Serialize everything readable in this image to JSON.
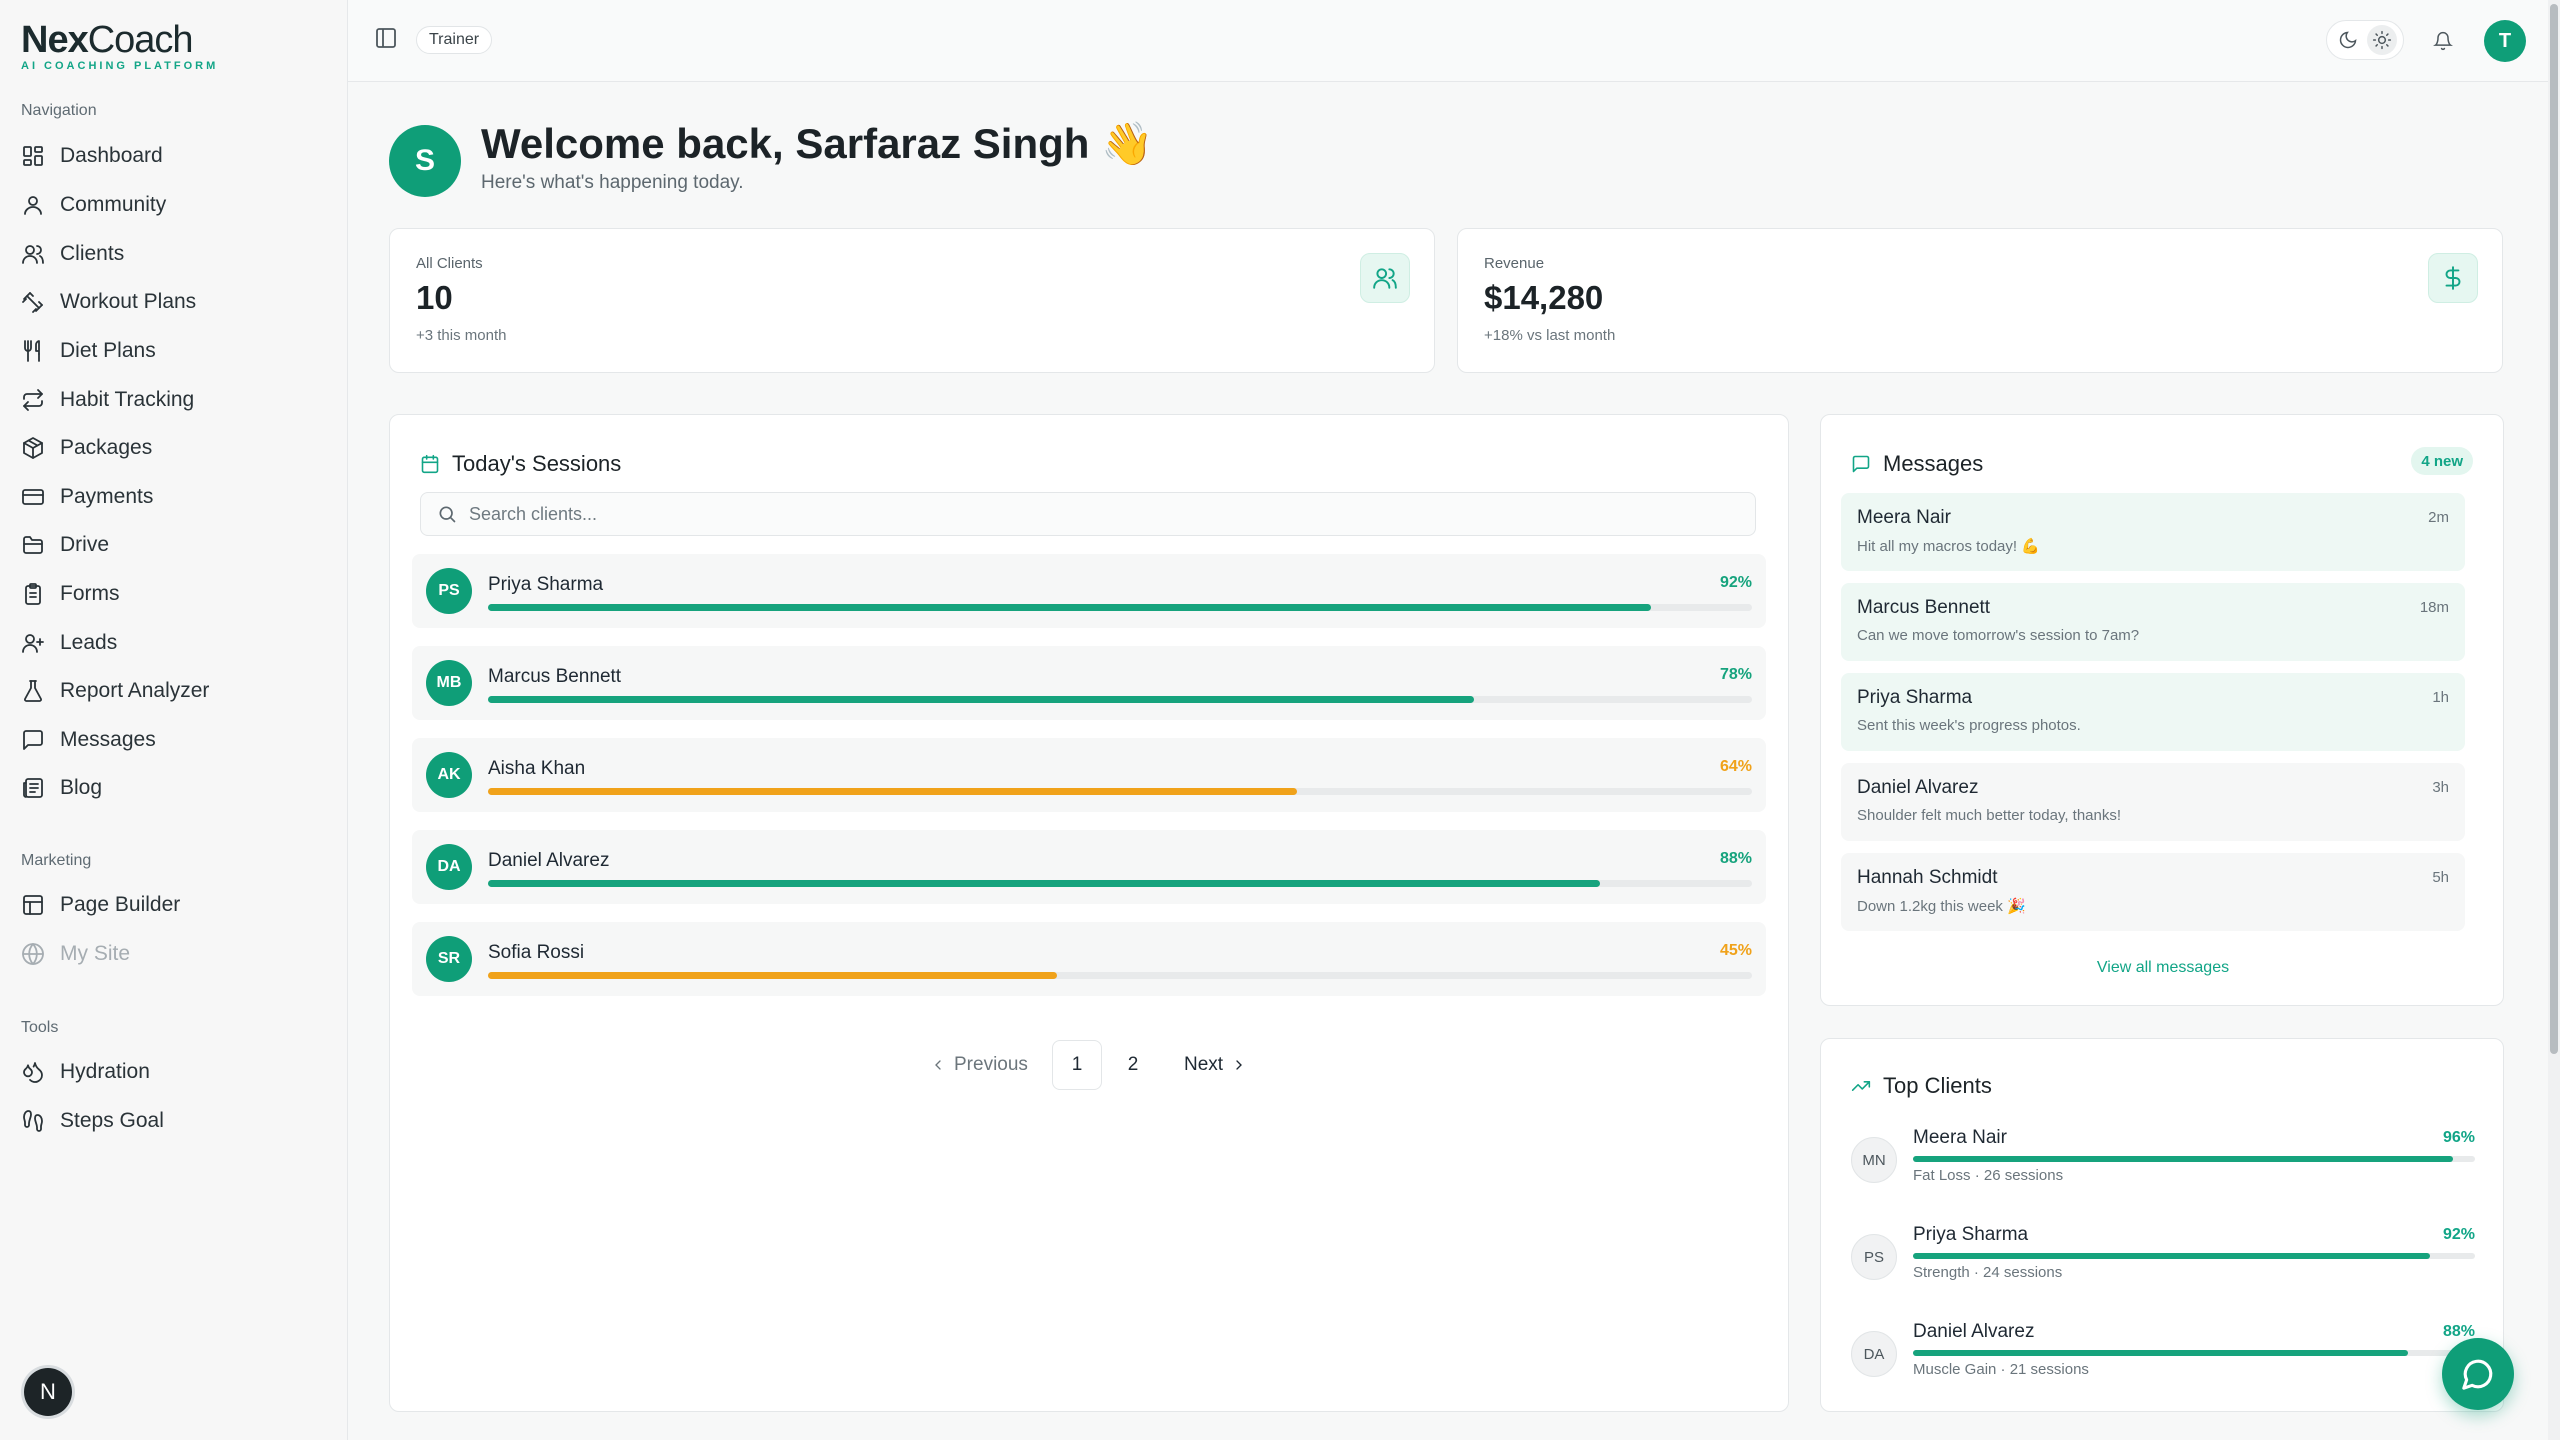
{
  "app": {
    "logo_bold": "Nex",
    "logo_light": "Coach",
    "tagline": "AI COACHING PLATFORM"
  },
  "colors": {
    "accent": "#0f9e78",
    "warning": "#f0a21a",
    "bar_green": "#16a37d"
  },
  "sidebar": {
    "nav_label": "Navigation",
    "nav": [
      {
        "label": "Dashboard",
        "icon": "dashboard-icon"
      },
      {
        "label": "Community",
        "icon": "user-icon"
      },
      {
        "label": "Clients",
        "icon": "users-icon"
      },
      {
        "label": "Workout Plans",
        "icon": "dumbbell-icon"
      },
      {
        "label": "Diet Plans",
        "icon": "utensils-icon"
      },
      {
        "label": "Habit Tracking",
        "icon": "repeat-icon"
      },
      {
        "label": "Packages",
        "icon": "package-icon"
      },
      {
        "label": "Payments",
        "icon": "credit-card-icon"
      },
      {
        "label": "Drive",
        "icon": "folder-icon"
      },
      {
        "label": "Forms",
        "icon": "clipboard-icon"
      },
      {
        "label": "Leads",
        "icon": "user-plus-icon"
      },
      {
        "label": "Report Analyzer",
        "icon": "flask-icon"
      },
      {
        "label": "Messages",
        "icon": "message-icon"
      },
      {
        "label": "Blog",
        "icon": "newspaper-icon"
      }
    ],
    "marketing_label": "Marketing",
    "marketing": [
      {
        "label": "Page Builder",
        "icon": "layout-icon"
      },
      {
        "label": "My Site",
        "icon": "globe-icon"
      }
    ],
    "tools_label": "Tools",
    "tools": [
      {
        "label": "Hydration",
        "icon": "droplet-icon"
      },
      {
        "label": "Steps Goal",
        "icon": "footprints-icon"
      }
    ],
    "bottom_badge": "N"
  },
  "topbar": {
    "role": "Trainer",
    "user_initial": "T"
  },
  "welcome": {
    "initial": "S",
    "title": "Welcome back, Sarfaraz Singh 👋",
    "subtitle": "Here's what's happening today."
  },
  "stats": [
    {
      "label": "All Clients",
      "value": "10",
      "sub": "+3 this month",
      "icon": "users-icon"
    },
    {
      "label": "Revenue",
      "value": "$14,280",
      "sub": "+18% vs last month",
      "icon": "dollar-icon"
    }
  ],
  "sessions": {
    "title": "Today's Sessions",
    "search_placeholder": "Search clients...",
    "rows": [
      {
        "initials": "PS",
        "name": "Priya Sharma",
        "pct_label": "92%",
        "pct": 0.92,
        "color": "#16a37d"
      },
      {
        "initials": "MB",
        "name": "Marcus Bennett",
        "pct_label": "78%",
        "pct": 0.78,
        "color": "#16a37d"
      },
      {
        "initials": "AK",
        "name": "Aisha Khan",
        "pct_label": "64%",
        "pct": 0.64,
        "color": "#f0a21a"
      },
      {
        "initials": "DA",
        "name": "Daniel Alvarez",
        "pct_label": "88%",
        "pct": 0.88,
        "color": "#16a37d"
      },
      {
        "initials": "SR",
        "name": "Sofia Rossi",
        "pct_label": "45%",
        "pct": 0.45,
        "color": "#f0a21a"
      }
    ],
    "pager": {
      "prev": "Previous",
      "pages": [
        "1",
        "2"
      ],
      "current": "1",
      "next": "Next"
    }
  },
  "messages": {
    "title": "Messages",
    "badge": "4 new",
    "items": [
      {
        "name": "Meera Nair",
        "text": "Hit all my macros today! 💪",
        "time": "2m",
        "unread": true
      },
      {
        "name": "Marcus Bennett",
        "text": "Can we move tomorrow's session to 7am?",
        "time": "18m",
        "unread": true
      },
      {
        "name": "Priya Sharma",
        "text": "Sent this week's progress photos.",
        "time": "1h",
        "unread": true
      },
      {
        "name": "Daniel Alvarez",
        "text": "Shoulder felt much better today, thanks!",
        "time": "3h",
        "unread": false
      },
      {
        "name": "Hannah Schmidt",
        "text": "Down 1.2kg this week 🎉",
        "time": "5h",
        "unread": false
      }
    ],
    "view_all": "View all messages"
  },
  "top_clients": {
    "title": "Top Clients",
    "items": [
      {
        "initials": "MN",
        "name": "Meera Nair",
        "pct_label": "96%",
        "pct": 0.96,
        "sub": "Fat Loss · 26 sessions"
      },
      {
        "initials": "PS",
        "name": "Priya Sharma",
        "pct_label": "92%",
        "pct": 0.92,
        "sub": "Strength · 24 sessions"
      },
      {
        "initials": "DA",
        "name": "Daniel Alvarez",
        "pct_label": "88%",
        "pct": 0.88,
        "sub": "Muscle Gain · 21 sessions"
      }
    ]
  }
}
